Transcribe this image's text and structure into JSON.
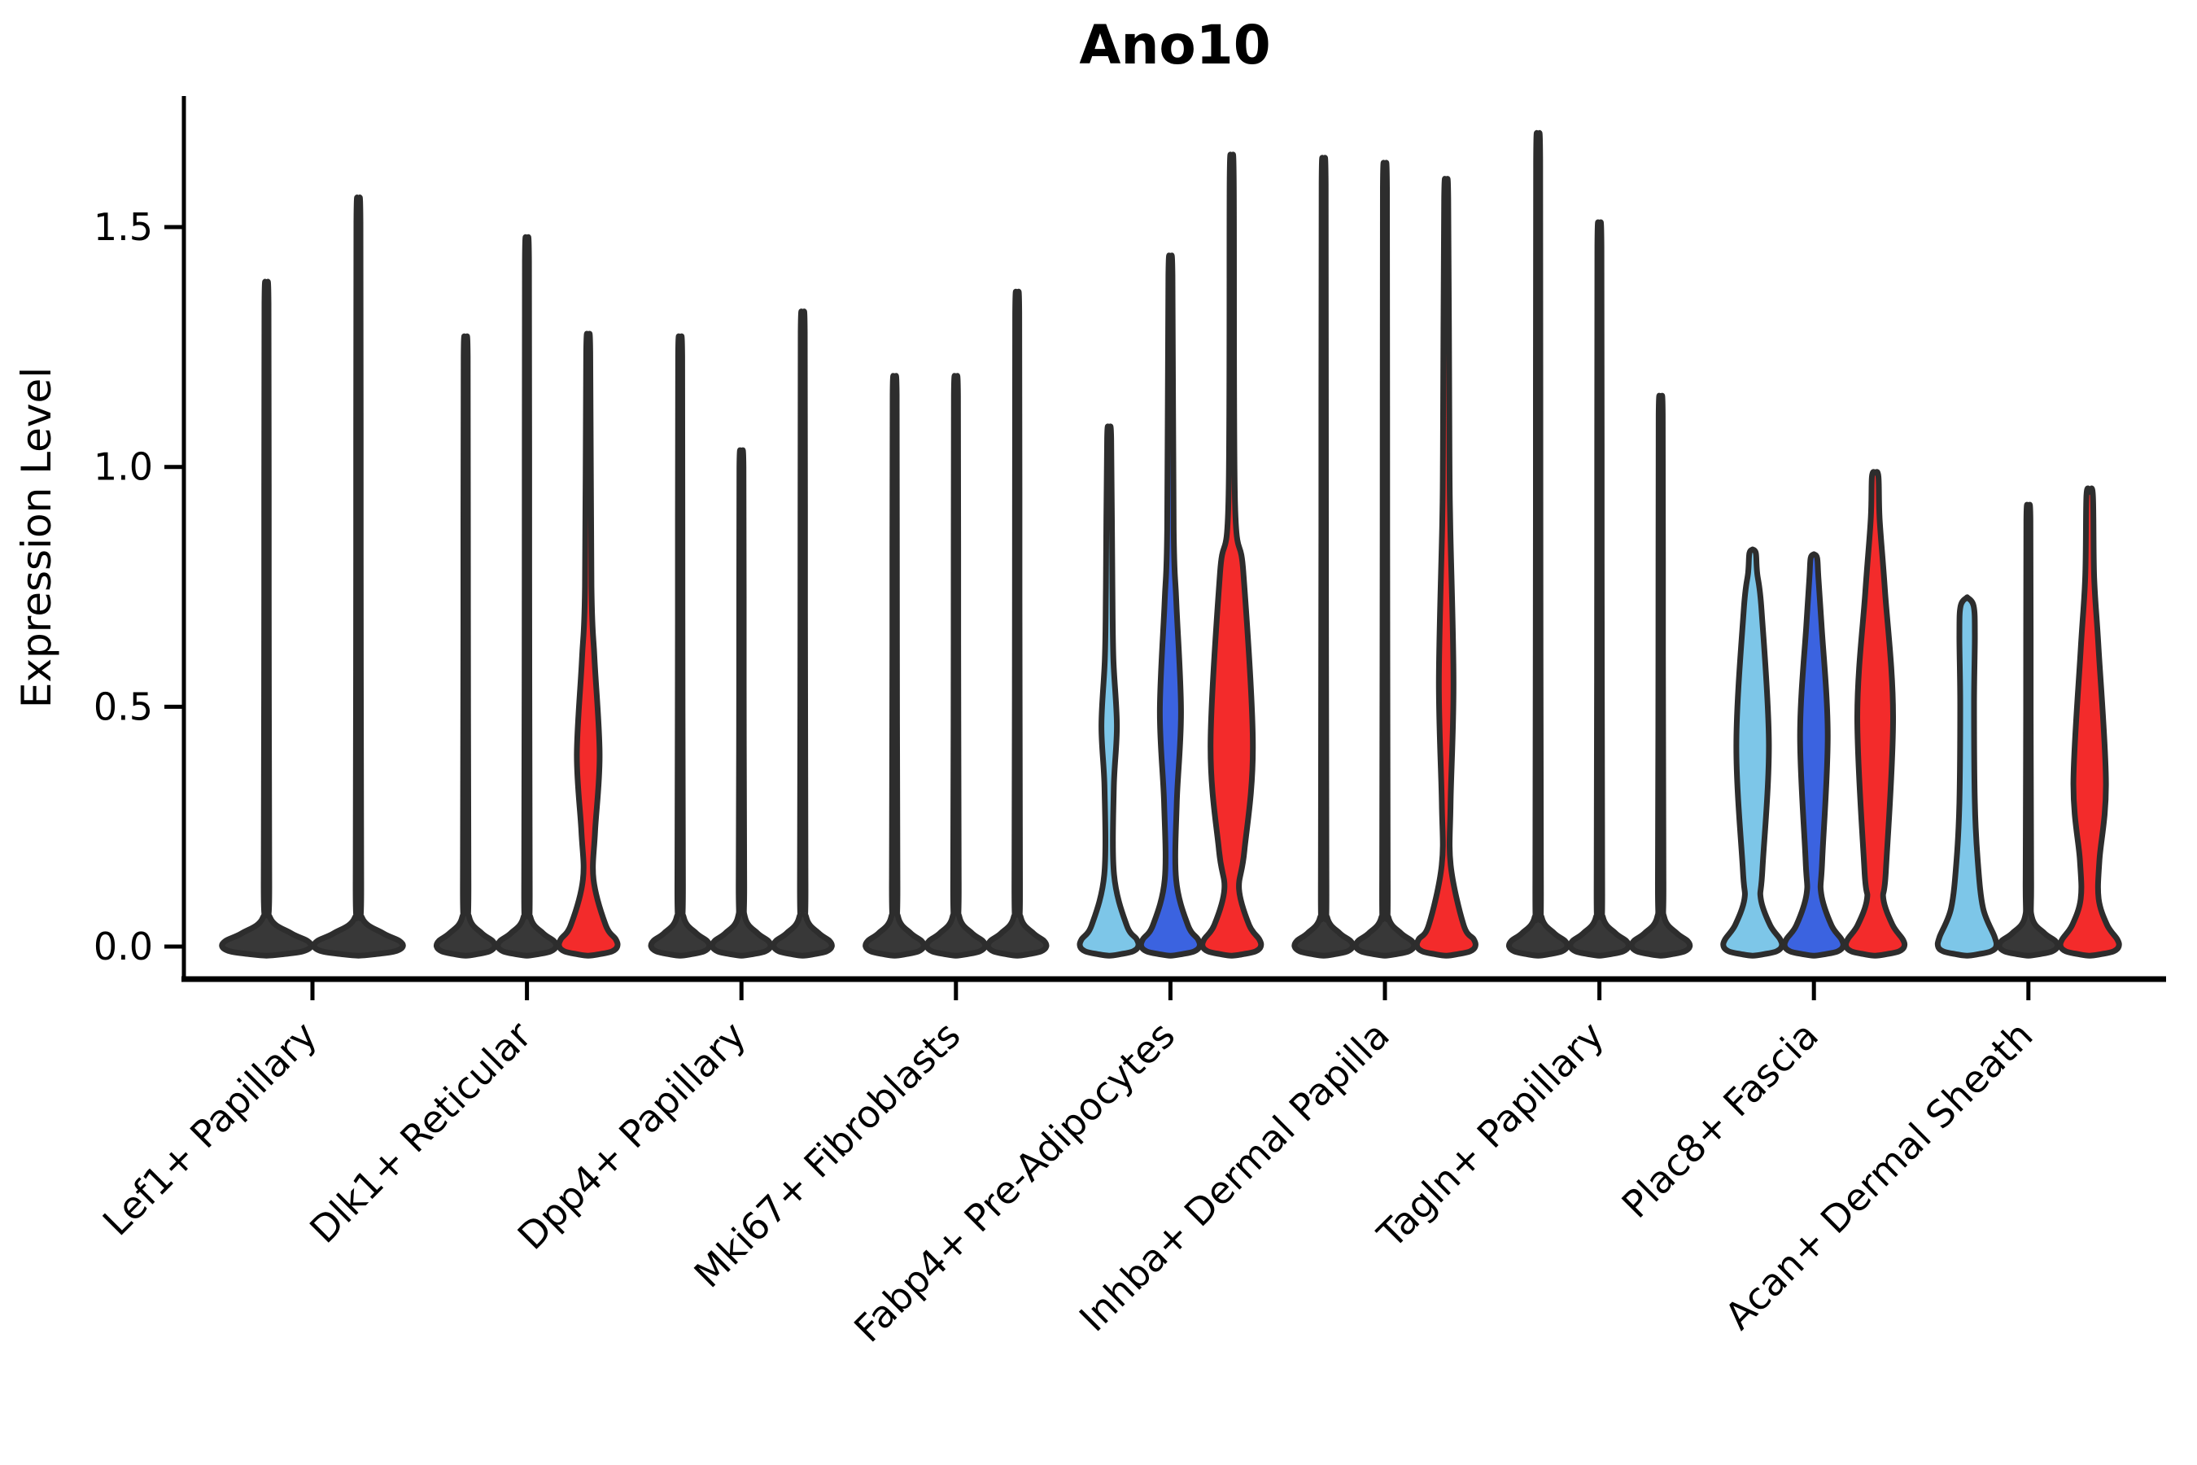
{
  "palette": {
    "lightblue": "#7dc6e8",
    "blue": "#3b63e0",
    "red": "#f32b2b",
    "dark": "#383838",
    "stroke": "#2d2d2d",
    "axis": "#000000"
  },
  "chart_data": {
    "type": "violin",
    "title": "Ano10",
    "ylabel": "Expression Level",
    "xlabel": "",
    "ylim": [
      -0.07,
      1.77
    ],
    "yticks": [
      0.0,
      0.5,
      1.0,
      1.5
    ],
    "grid": false,
    "legend": "none",
    "categories": [
      {
        "label": "Lef1+ Papillary",
        "violins": [
          {
            "color": "dark",
            "style": "spike",
            "max": 1.34
          },
          {
            "color": "dark",
            "style": "spike",
            "max": 1.51
          }
        ]
      },
      {
        "label": "Dlk1+ Reticular",
        "violins": [
          {
            "color": "dark",
            "style": "spike",
            "max": 1.23
          },
          {
            "color": "dark",
            "style": "spike",
            "max": 1.43
          },
          {
            "color": "red",
            "style": "bulge",
            "max": 1.24,
            "bulge": {
              "lo": 0.24,
              "hi": 0.6,
              "peak": 0.4,
              "hw": 14
            },
            "pinch": {
              "v": 0.14,
              "hw": 6.5
            }
          }
        ]
      },
      {
        "label": "Dpp4+ Papillary",
        "violins": [
          {
            "color": "dark",
            "style": "spike",
            "max": 1.23
          },
          {
            "color": "dark",
            "style": "spike",
            "max": 1.0
          },
          {
            "color": "dark",
            "style": "spike",
            "max": 1.28
          }
        ]
      },
      {
        "label": "Mki67+ Fibroblasts",
        "violins": [
          {
            "color": "dark",
            "style": "spike",
            "max": 1.15
          },
          {
            "color": "dark",
            "style": "spike",
            "max": 1.15
          },
          {
            "color": "dark",
            "style": "spike",
            "max": 1.32
          }
        ]
      },
      {
        "label": "Fabp4+ Pre-Adipocytes",
        "violins": [
          {
            "color": "lightblue",
            "style": "bulge",
            "max": 1.06,
            "bulge": {
              "lo": 0.33,
              "hi": 0.6,
              "peak": 0.46,
              "hw": 9.5
            },
            "pinch": {
              "v": 0.15,
              "hw": 6
            }
          },
          {
            "color": "blue",
            "style": "bulge",
            "max": 1.4,
            "bulge": {
              "lo": 0.3,
              "hi": 0.72,
              "peak": 0.49,
              "hw": 13
            },
            "pinch": {
              "v": 0.14,
              "hw": 7
            }
          },
          {
            "color": "red",
            "style": "bulge",
            "max": 1.6,
            "bulge": {
              "lo": 0.2,
              "hi": 0.78,
              "peak": 0.42,
              "hw": 26
            },
            "pinch": {
              "v": 0.12,
              "hw": 9
            }
          }
        ]
      },
      {
        "label": "Inhba+ Dermal Papilla",
        "violins": [
          {
            "color": "dark",
            "style": "spike",
            "max": 1.59
          },
          {
            "color": "dark",
            "style": "spike",
            "max": 1.58
          },
          {
            "color": "red",
            "style": "bulge",
            "max": 1.56,
            "bulge": {
              "lo": 0.3,
              "hi": 0.88,
              "peak": 0.55,
              "hw": 9
            },
            "pinch": {
              "v": 0.17,
              "hw": 5.5
            }
          }
        ]
      },
      {
        "label": "Tagln+ Papillary",
        "violins": [
          {
            "color": "dark",
            "style": "spike",
            "max": 1.64
          },
          {
            "color": "dark",
            "style": "spike",
            "max": 1.46
          },
          {
            "color": "dark",
            "style": "spike",
            "max": 1.11
          }
        ]
      },
      {
        "label": "Plac8+ Fascia",
        "violins": [
          {
            "color": "lightblue",
            "style": "bulge",
            "max": 0.82,
            "tip": 4,
            "bulge": {
              "lo": 0.16,
              "hi": 0.7,
              "peak": 0.42,
              "hw": 20
            },
            "pinch": {
              "v": 0.1,
              "hw": 10
            }
          },
          {
            "color": "blue",
            "style": "bulge",
            "max": 0.81,
            "tip": 4,
            "bulge": {
              "lo": 0.18,
              "hi": 0.67,
              "peak": 0.44,
              "hw": 17
            },
            "pinch": {
              "v": 0.11,
              "hw": 9
            }
          },
          {
            "color": "red",
            "style": "bulge",
            "max": 0.98,
            "tip": 4,
            "bulge": {
              "lo": 0.16,
              "hi": 0.74,
              "peak": 0.48,
              "hw": 22
            },
            "pinch": {
              "v": 0.1,
              "hw": 10
            }
          }
        ]
      },
      {
        "label": "Acan+ Dermal Sheath",
        "violins": [
          {
            "color": "lightblue",
            "style": "tube",
            "max": 0.71
          },
          {
            "color": "dark",
            "style": "spike",
            "max": 0.89
          },
          {
            "color": "red",
            "style": "bulge",
            "max": 0.94,
            "tip": 4,
            "bulge": {
              "lo": 0.18,
              "hi": 0.62,
              "peak": 0.34,
              "hw": 20
            },
            "pinch": {
              "v": 0.1,
              "hw": 11
            }
          }
        ]
      }
    ]
  }
}
